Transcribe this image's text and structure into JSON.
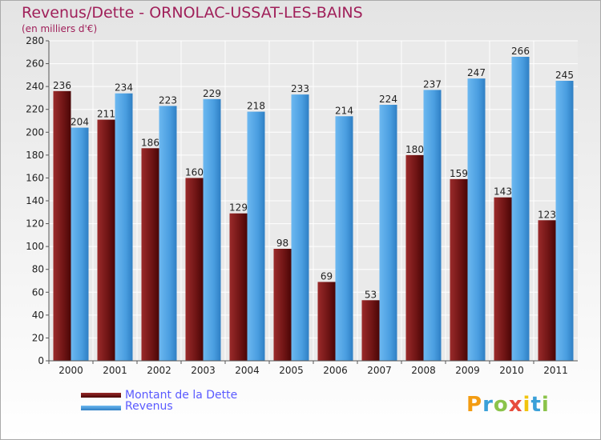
{
  "chart_data": {
    "type": "bar",
    "title": "Revenus/Dette - ORNOLAC-USSAT-LES-BAINS",
    "subtitle": "(en milliers d'€)",
    "categories": [
      "2000",
      "2001",
      "2002",
      "2003",
      "2004",
      "2005",
      "2006",
      "2007",
      "2008",
      "2009",
      "2010",
      "2011"
    ],
    "series": [
      {
        "name": "Montant de la Dette",
        "color": "#7a1a1a",
        "values": [
          236,
          211,
          186,
          160,
          129,
          98,
          69,
          53,
          180,
          159,
          143,
          123
        ]
      },
      {
        "name": "Revenus",
        "color": "#4a9ee0",
        "values": [
          204,
          234,
          223,
          229,
          218,
          233,
          214,
          224,
          237,
          247,
          266,
          245
        ]
      }
    ],
    "ylim": [
      0,
      280
    ],
    "ytick_step": 20,
    "grid": true,
    "legend_position": "bottom-left"
  },
  "logo": {
    "letters": [
      "P",
      "r",
      "o",
      "x",
      "i",
      "t",
      "i"
    ],
    "colors": [
      "#f39c12",
      "#3aa0d8",
      "#8bc34a",
      "#e74c3c",
      "#f1c40f",
      "#3aa0d8",
      "#8bc34a"
    ]
  }
}
